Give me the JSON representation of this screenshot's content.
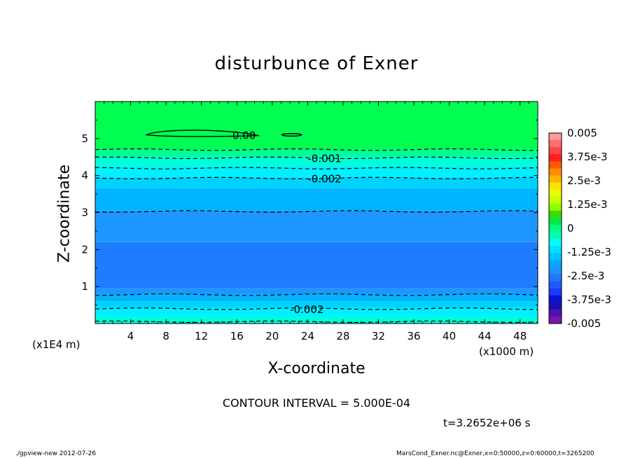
{
  "chart_data": {
    "type": "heatmap",
    "title": "disturbunce of Exner",
    "xlabel": "X-coordinate",
    "ylabel": "Z-coordinate",
    "x_unit_note": "(x1E4 m)",
    "x_unit": "(x1000 m)",
    "xlim": [
      0,
      50
    ],
    "ylim": [
      0,
      6
    ],
    "x_ticks": [
      4,
      8,
      12,
      16,
      20,
      24,
      28,
      32,
      36,
      40,
      44,
      48
    ],
    "y_ticks": [
      1,
      2,
      3,
      4,
      5
    ],
    "colorbar": {
      "labels": [
        "0.005",
        "3.75e-3",
        "2.5e-3",
        "1.25e-3",
        "0",
        "-1.25e-3",
        "-2.5e-3",
        "-3.75e-3",
        "-0.005"
      ],
      "min": -0.005,
      "max": 0.005,
      "colors_top_to_bottom": [
        "#ff9a9a",
        "#ff6f6f",
        "#ff4545",
        "#ff1f1f",
        "#ff5a00",
        "#ff8c00",
        "#ffb400",
        "#ffe000",
        "#e8ff00",
        "#c8ff00",
        "#8cff00",
        "#3cdc00",
        "#00e84a",
        "#00ff78",
        "#00ffb0",
        "#00fff0",
        "#00e0ff",
        "#00c4ff",
        "#00a8ff",
        "#1e90ff",
        "#2277ff",
        "#1e5aff",
        "#1a3cff",
        "#0a14d8",
        "#1a10b0",
        "#5010b0",
        "#7a14b0"
      ]
    },
    "bands_z": [
      {
        "z0": 4.7,
        "z1": 6.0,
        "value": 0.0,
        "color": "#00ff50"
      },
      {
        "z0": 4.5,
        "z1": 4.7,
        "value": -0.0006,
        "color": "#00ff99"
      },
      {
        "z0": 4.25,
        "z1": 4.5,
        "value": -0.0012,
        "color": "#00ffd8"
      },
      {
        "z0": 3.95,
        "z1": 4.25,
        "value": -0.0018,
        "color": "#00f0ff"
      },
      {
        "z0": 3.65,
        "z1": 3.95,
        "value": -0.0022,
        "color": "#00d2ff"
      },
      {
        "z0": 3.05,
        "z1": 3.65,
        "value": -0.0027,
        "color": "#00b4ff"
      },
      {
        "z0": 2.2,
        "z1": 3.05,
        "value": -0.0031,
        "color": "#1e96ff"
      },
      {
        "z0": 0.95,
        "z1": 2.2,
        "value": -0.0035,
        "color": "#1e7dff"
      },
      {
        "z0": 0.78,
        "z1": 0.95,
        "value": -0.003,
        "color": "#1e96ff"
      },
      {
        "z0": 0.6,
        "z1": 0.78,
        "value": -0.0027,
        "color": "#00b4ff"
      },
      {
        "z0": 0.42,
        "z1": 0.6,
        "value": -0.0022,
        "color": "#00d2ff"
      },
      {
        "z0": 0.18,
        "z1": 0.42,
        "value": -0.0018,
        "color": "#00f0ff"
      },
      {
        "z0": 0.0,
        "z1": 0.18,
        "value": -0.0012,
        "color": "#00ffd8"
      }
    ],
    "contours": [
      {
        "value": -0.0005,
        "z": 4.7,
        "dash": true
      },
      {
        "value": -0.001,
        "z": 4.48,
        "dash": true,
        "label": "-0.001",
        "label_x": 24
      },
      {
        "value": -0.0015,
        "z": 4.2,
        "dash": true
      },
      {
        "value": -0.002,
        "z": 3.93,
        "dash": true,
        "label": "-0.002",
        "label_x": 24
      },
      {
        "value": -0.0025,
        "z": 3.03,
        "dash": true
      },
      {
        "value": -0.0025,
        "z": 0.78,
        "dash": true
      },
      {
        "value": -0.002,
        "z": 0.4,
        "dash": true,
        "label": "-0.002",
        "label_x": 22
      },
      {
        "value": -0.0015,
        "z": 0.05,
        "dash": true
      }
    ],
    "zero_contour_label": "0.00",
    "zero_contour_label_x": 15.5,
    "zero_contour_z": 5.1,
    "contour_interval_text": "CONTOUR INTERVAL = 5.000E-04",
    "time_text": "t=3.2652e+06 s"
  },
  "footer": {
    "left": "./gpview-new   2012-07-26",
    "right": "MarsCond_Exner.nc@Exner,x=0:50000,z=0:60000,t=3265200"
  }
}
